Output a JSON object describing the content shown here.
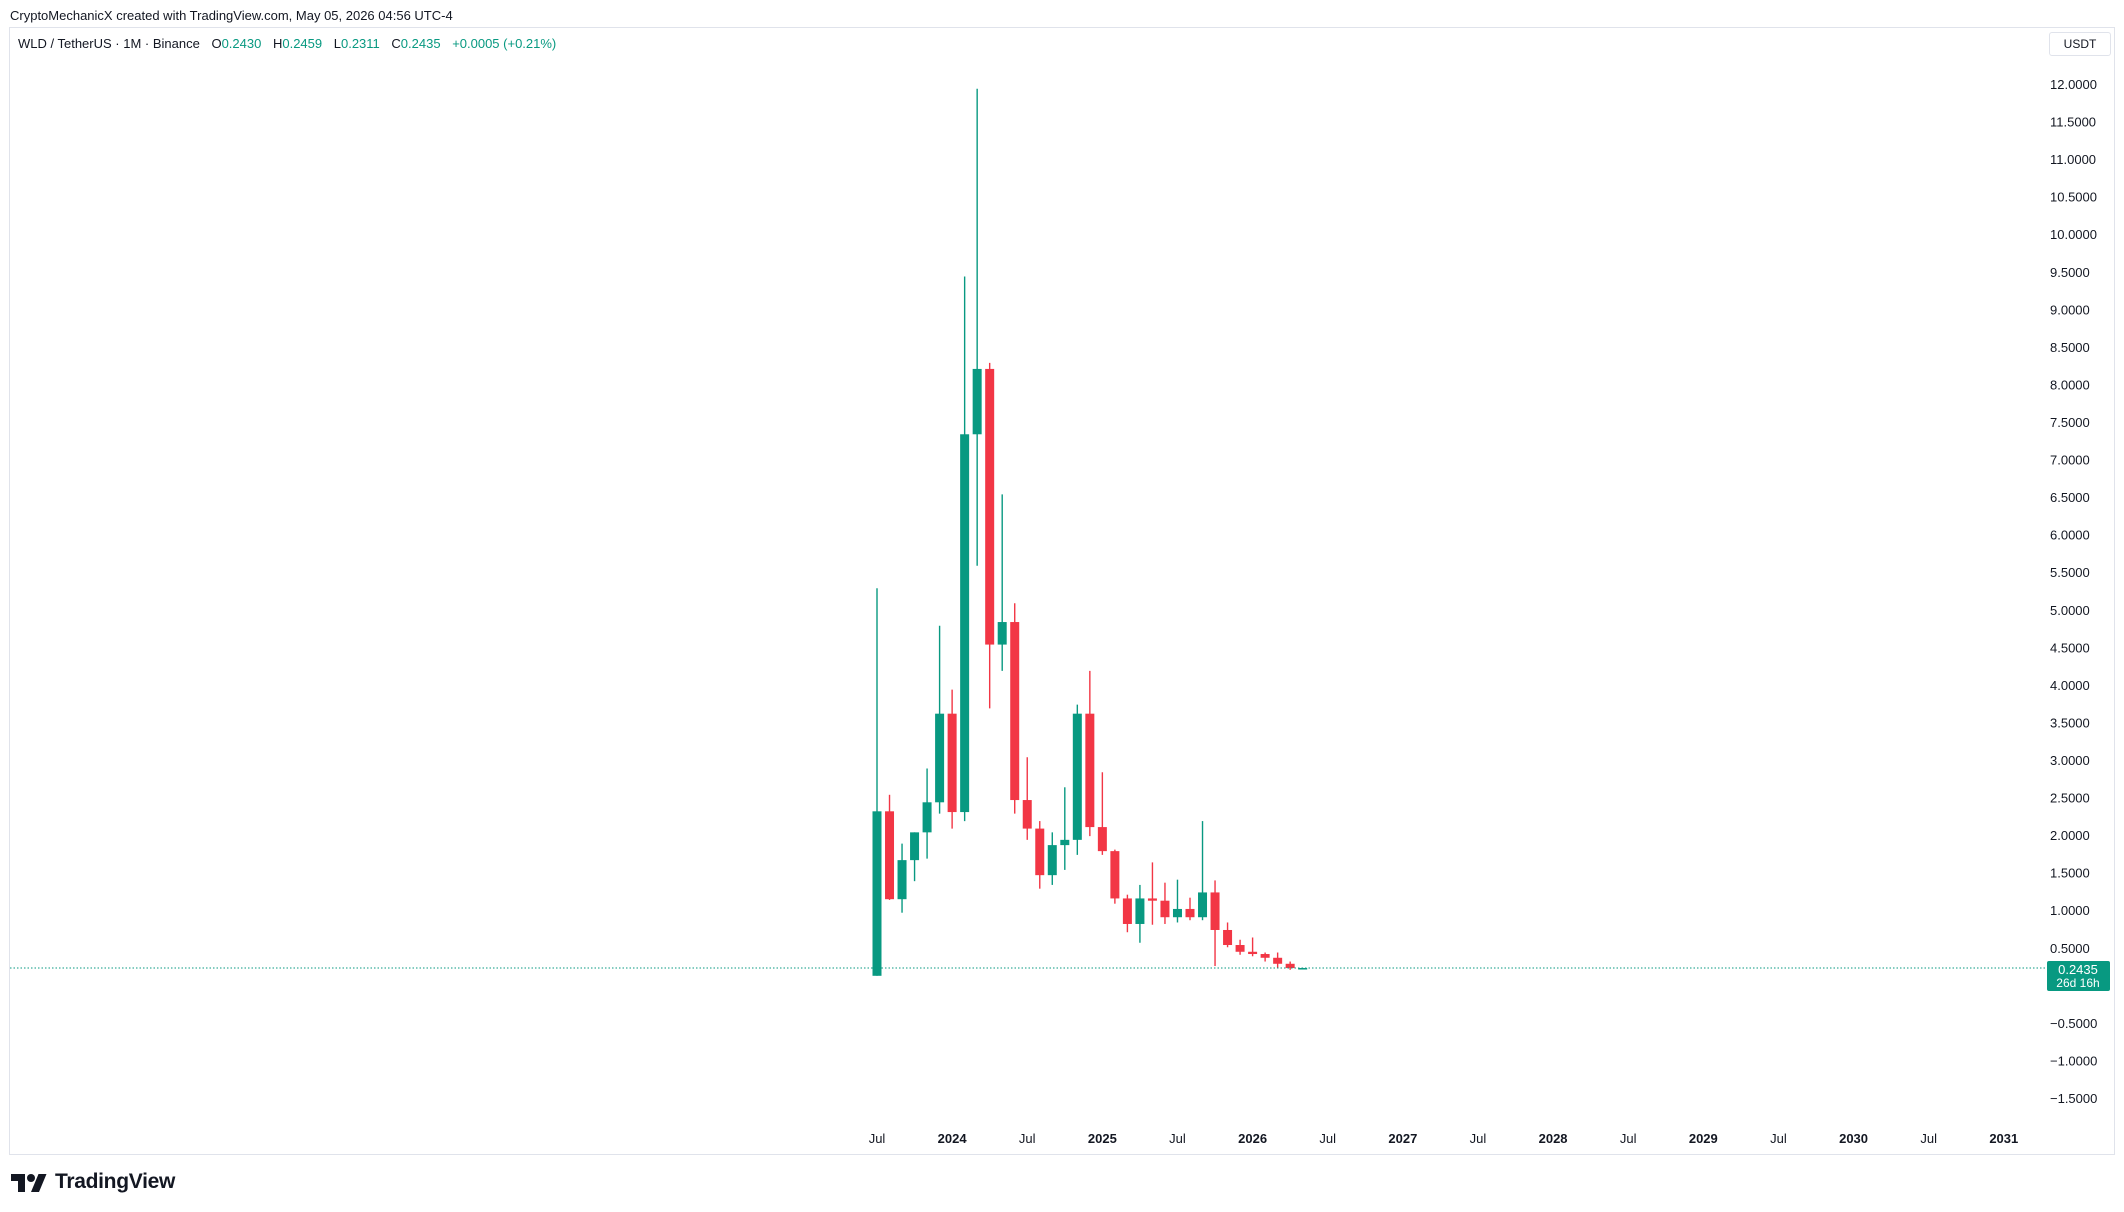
{
  "credit": "CryptoMechanicX created with TradingView.com, May 05, 2026 04:56 UTC-4",
  "legend": {
    "symbol": "WLD / TetherUS · 1M · Binance",
    "o_label": "O",
    "o_value": "0.2430",
    "h_label": "H",
    "h_value": "0.2459",
    "l_label": "L",
    "l_value": "0.2311",
    "c_label": "C",
    "c_value": "0.2435",
    "change": "+0.0005 (+0.21%)"
  },
  "price_axis": {
    "unit": "USDT"
  },
  "last_price": {
    "value": "0.2435",
    "countdown": "26d 16h"
  },
  "brand": {
    "name": "TradingView"
  },
  "colors": {
    "up": "#089981",
    "down": "#f23645",
    "grid": "#e0e3eb",
    "text": "#131722"
  },
  "chart_data": {
    "type": "candlestick",
    "symbol": "WLD / TetherUS",
    "interval": "1M",
    "exchange": "Binance",
    "ylim": [
      -1.7,
      12.2
    ],
    "xlim": [
      "2022-10",
      "2031-05"
    ],
    "y_ticks": [
      "12.0000",
      "11.5000",
      "11.0000",
      "10.5000",
      "10.0000",
      "9.5000",
      "9.0000",
      "8.5000",
      "8.0000",
      "7.5000",
      "7.0000",
      "6.5000",
      "6.0000",
      "5.5000",
      "5.0000",
      "4.5000",
      "4.0000",
      "3.5000",
      "3.0000",
      "2.5000",
      "2.0000",
      "1.5000",
      "1.0000",
      "0.5000",
      "−0.5000",
      "−1.0000",
      "−1.5000"
    ],
    "x_ticks": [
      {
        "label": "Jul",
        "date": "2023-07",
        "major": false
      },
      {
        "label": "2024",
        "date": "2024-01",
        "major": true
      },
      {
        "label": "Jul",
        "date": "2024-07",
        "major": false
      },
      {
        "label": "2025",
        "date": "2025-01",
        "major": true
      },
      {
        "label": "Jul",
        "date": "2025-07",
        "major": false
      },
      {
        "label": "2026",
        "date": "2026-01",
        "major": true
      },
      {
        "label": "Jul",
        "date": "2026-07",
        "major": false
      },
      {
        "label": "2027",
        "date": "2027-01",
        "major": true
      },
      {
        "label": "Jul",
        "date": "2027-07",
        "major": false
      },
      {
        "label": "2028",
        "date": "2028-01",
        "major": true
      },
      {
        "label": "Jul",
        "date": "2028-07",
        "major": false
      },
      {
        "label": "2029",
        "date": "2029-01",
        "major": true
      },
      {
        "label": "Jul",
        "date": "2029-07",
        "major": false
      },
      {
        "label": "2030",
        "date": "2030-01",
        "major": true
      },
      {
        "label": "Jul",
        "date": "2030-07",
        "major": false
      },
      {
        "label": "2031",
        "date": "2031-01",
        "major": true
      }
    ],
    "last_price_line": 0.2435,
    "candles": [
      {
        "date": "2023-07",
        "o": 0.14,
        "h": 5.3,
        "l": 0.14,
        "c": 2.33
      },
      {
        "date": "2023-08",
        "o": 2.33,
        "h": 2.55,
        "l": 1.15,
        "c": 1.16
      },
      {
        "date": "2023-09",
        "o": 1.16,
        "h": 1.9,
        "l": 0.98,
        "c": 1.68
      },
      {
        "date": "2023-10",
        "o": 1.68,
        "h": 2.05,
        "l": 1.4,
        "c": 2.05
      },
      {
        "date": "2023-11",
        "o": 2.05,
        "h": 2.9,
        "l": 1.7,
        "c": 2.45
      },
      {
        "date": "2023-12",
        "o": 2.45,
        "h": 4.8,
        "l": 2.3,
        "c": 3.63
      },
      {
        "date": "2024-01",
        "o": 3.63,
        "h": 3.95,
        "l": 2.1,
        "c": 2.32
      },
      {
        "date": "2024-02",
        "o": 2.32,
        "h": 9.45,
        "l": 2.2,
        "c": 7.35
      },
      {
        "date": "2024-03",
        "o": 7.35,
        "h": 11.95,
        "l": 5.6,
        "c": 8.22
      },
      {
        "date": "2024-04",
        "o": 8.22,
        "h": 8.3,
        "l": 3.7,
        "c": 4.55
      },
      {
        "date": "2024-05",
        "o": 4.55,
        "h": 6.55,
        "l": 4.2,
        "c": 4.85
      },
      {
        "date": "2024-06",
        "o": 4.85,
        "h": 5.1,
        "l": 2.3,
        "c": 2.48
      },
      {
        "date": "2024-07",
        "o": 2.48,
        "h": 3.05,
        "l": 1.95,
        "c": 2.1
      },
      {
        "date": "2024-08",
        "o": 2.1,
        "h": 2.2,
        "l": 1.3,
        "c": 1.48
      },
      {
        "date": "2024-09",
        "o": 1.48,
        "h": 2.05,
        "l": 1.35,
        "c": 1.88
      },
      {
        "date": "2024-10",
        "o": 1.88,
        "h": 2.65,
        "l": 1.55,
        "c": 1.95
      },
      {
        "date": "2024-11",
        "o": 1.95,
        "h": 3.75,
        "l": 1.75,
        "c": 3.63
      },
      {
        "date": "2024-12",
        "o": 3.63,
        "h": 4.2,
        "l": 2.0,
        "c": 2.12
      },
      {
        "date": "2025-01",
        "o": 2.12,
        "h": 2.85,
        "l": 1.75,
        "c": 1.8
      },
      {
        "date": "2025-02",
        "o": 1.8,
        "h": 1.82,
        "l": 1.1,
        "c": 1.17
      },
      {
        "date": "2025-03",
        "o": 1.17,
        "h": 1.22,
        "l": 0.72,
        "c": 0.83
      },
      {
        "date": "2025-04",
        "o": 0.83,
        "h": 1.35,
        "l": 0.58,
        "c": 1.17
      },
      {
        "date": "2025-05",
        "o": 1.17,
        "h": 1.65,
        "l": 0.82,
        "c": 1.14
      },
      {
        "date": "2025-06",
        "o": 1.14,
        "h": 1.38,
        "l": 0.83,
        "c": 0.92
      },
      {
        "date": "2025-07",
        "o": 0.92,
        "h": 1.42,
        "l": 0.85,
        "c": 1.03
      },
      {
        "date": "2025-08",
        "o": 1.03,
        "h": 1.18,
        "l": 0.88,
        "c": 0.92
      },
      {
        "date": "2025-09",
        "o": 0.92,
        "h": 2.2,
        "l": 0.88,
        "c": 1.25
      },
      {
        "date": "2025-10",
        "o": 1.25,
        "h": 1.41,
        "l": 0.27,
        "c": 0.75
      },
      {
        "date": "2025-11",
        "o": 0.75,
        "h": 0.85,
        "l": 0.52,
        "c": 0.55
      },
      {
        "date": "2025-12",
        "o": 0.55,
        "h": 0.62,
        "l": 0.42,
        "c": 0.46
      },
      {
        "date": "2026-01",
        "o": 0.46,
        "h": 0.65,
        "l": 0.4,
        "c": 0.43
      },
      {
        "date": "2026-02",
        "o": 0.43,
        "h": 0.45,
        "l": 0.33,
        "c": 0.38
      },
      {
        "date": "2026-03",
        "o": 0.38,
        "h": 0.45,
        "l": 0.25,
        "c": 0.3
      },
      {
        "date": "2026-04",
        "o": 0.3,
        "h": 0.33,
        "l": 0.22,
        "c": 0.243
      },
      {
        "date": "2026-05",
        "o": 0.243,
        "h": 0.2459,
        "l": 0.2311,
        "c": 0.2435
      }
    ]
  }
}
